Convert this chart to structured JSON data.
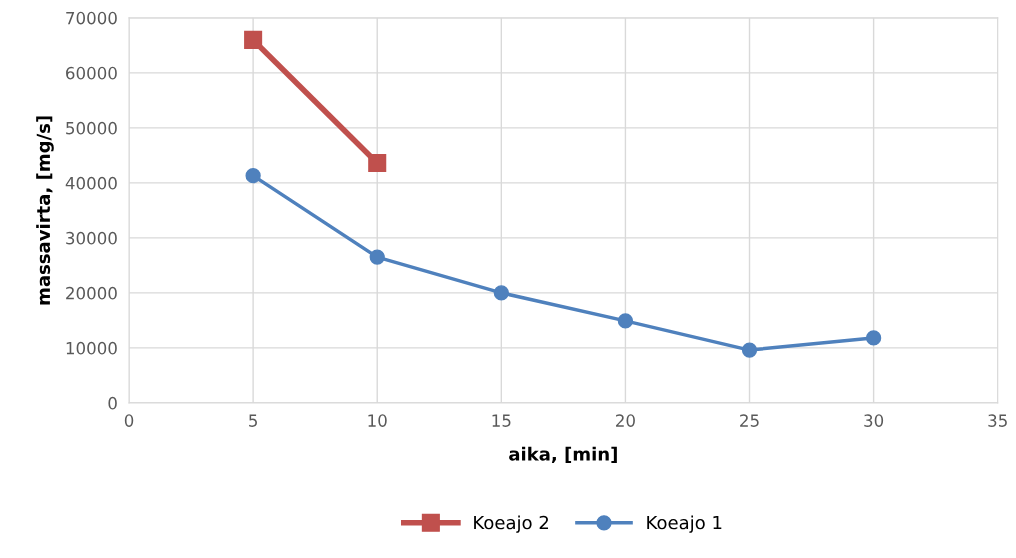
{
  "chart_data": {
    "type": "line",
    "xlabel": "aika, [min]",
    "ylabel": "massavirta, [mg/s]",
    "xlim": [
      0,
      35
    ],
    "xticks": [
      0,
      5,
      10,
      15,
      20,
      25,
      30,
      35
    ],
    "ylim": [
      0,
      70000
    ],
    "yticks": [
      0,
      10000,
      20000,
      30000,
      40000,
      50000,
      60000,
      70000
    ],
    "grid": true,
    "legend": "bottom",
    "series": [
      {
        "name": "Koeajo 2",
        "color": "#c0504d",
        "marker": "square",
        "x": [
          5,
          10
        ],
        "values": [
          66000,
          43600
        ]
      },
      {
        "name": "Koeajo 1",
        "color": "#4f81bd",
        "marker": "circle",
        "x": [
          5,
          10,
          15,
          20,
          25,
          30
        ],
        "values": [
          41300,
          26500,
          20000,
          14900,
          9600,
          11800
        ]
      }
    ]
  }
}
